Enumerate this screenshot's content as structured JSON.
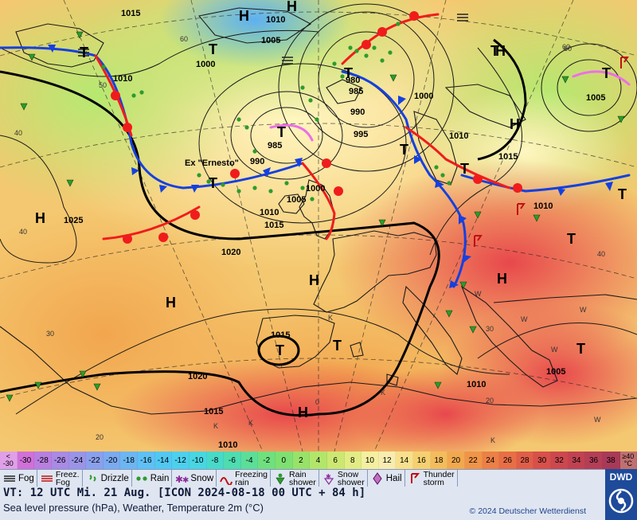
{
  "map": {
    "highs": [
      "H",
      "H",
      "H",
      "H",
      "H",
      "H",
      "H",
      "H",
      "H"
    ],
    "lows": [
      "T",
      "T",
      "T",
      "T",
      "T",
      "T",
      "T",
      "T",
      "T",
      "T",
      "T",
      "T",
      "T",
      "T",
      "T"
    ],
    "storm_label": "Ex \"Ernesto\"",
    "isobar_labels": [
      "1015",
      "1010",
      "1005",
      "1000",
      "1010",
      "980",
      "985",
      "990",
      "1000",
      "995",
      "985",
      "990",
      "1000",
      "1005",
      "1010",
      "1015",
      "1010",
      "1025",
      "1020",
      "1015",
      "1020",
      "1015",
      "1010",
      "1005",
      "1010",
      "1015",
      "1000",
      "1005",
      "1010",
      "1010",
      "1015",
      "1010"
    ],
    "temperature_contour_labels": [
      "60",
      "50",
      "40",
      "40",
      "30",
      "20",
      "20",
      "30",
      "40",
      "60",
      "W",
      "W",
      "W",
      "W",
      "W",
      "K",
      "K",
      "K",
      "K",
      "K",
      "0",
      "60"
    ]
  },
  "scale": {
    "left_top": "<",
    "left_bottom": "-30",
    "values": [
      "-30",
      "-28",
      "-26",
      "-24",
      "-22",
      "-20",
      "-18",
      "-16",
      "-14",
      "-12",
      "-10",
      "-8",
      "-6",
      "-4",
      "-2",
      "0",
      "2",
      "4",
      "6",
      "8",
      "10",
      "12",
      "14",
      "16",
      "18",
      "20",
      "22",
      "24",
      "26",
      "28",
      "30",
      "32",
      "34",
      "36",
      "38"
    ],
    "right_top": "≥40",
    "right_bottom": "°C",
    "colors": [
      "#d070d8",
      "#b87ee0",
      "#a98ae4",
      "#9a94e8",
      "#8aa0ec",
      "#7aaaf0",
      "#6cb6f2",
      "#5ec0f4",
      "#50c8f2",
      "#4cd0ee",
      "#48d6e2",
      "#48dac8",
      "#4edcb0",
      "#5cde98",
      "#70e07e",
      "#7ee070",
      "#98e26a",
      "#b2e66a",
      "#cce872",
      "#e2ec84",
      "#f4f0a0",
      "#f8ecb0",
      "#f8e08c",
      "#f6d070",
      "#f4bc5c",
      "#f2a84e",
      "#f09448",
      "#ec8046",
      "#e86e46",
      "#e05e48",
      "#d8504a",
      "#cc484e",
      "#c04252",
      "#b43e56",
      "#a83a58"
    ]
  },
  "legend": {
    "fog": "Fog",
    "freezing_fog": [
      "Freez.",
      "Fog"
    ],
    "drizzle": "Drizzle",
    "rain": "Rain",
    "snow": "Snow",
    "freezing_rain": [
      "Freezing",
      "rain"
    ],
    "rain_shower": [
      "Rain",
      "shower"
    ],
    "snow_shower": [
      "Snow",
      "shower"
    ],
    "hail": "Hail",
    "thunderstorm": [
      "Thunder",
      "storm"
    ]
  },
  "footer": {
    "valid_time": "VT: 12 UTC Mi.  21 Aug. [ICON 2024-08-18  00 UTC + 84 h]",
    "subtitle": "Sea level pressure (hPa), Weather, Temperature 2m (°C)",
    "copyright": "© 2024 Deutscher Wetterdienst",
    "logo": "DWD"
  }
}
